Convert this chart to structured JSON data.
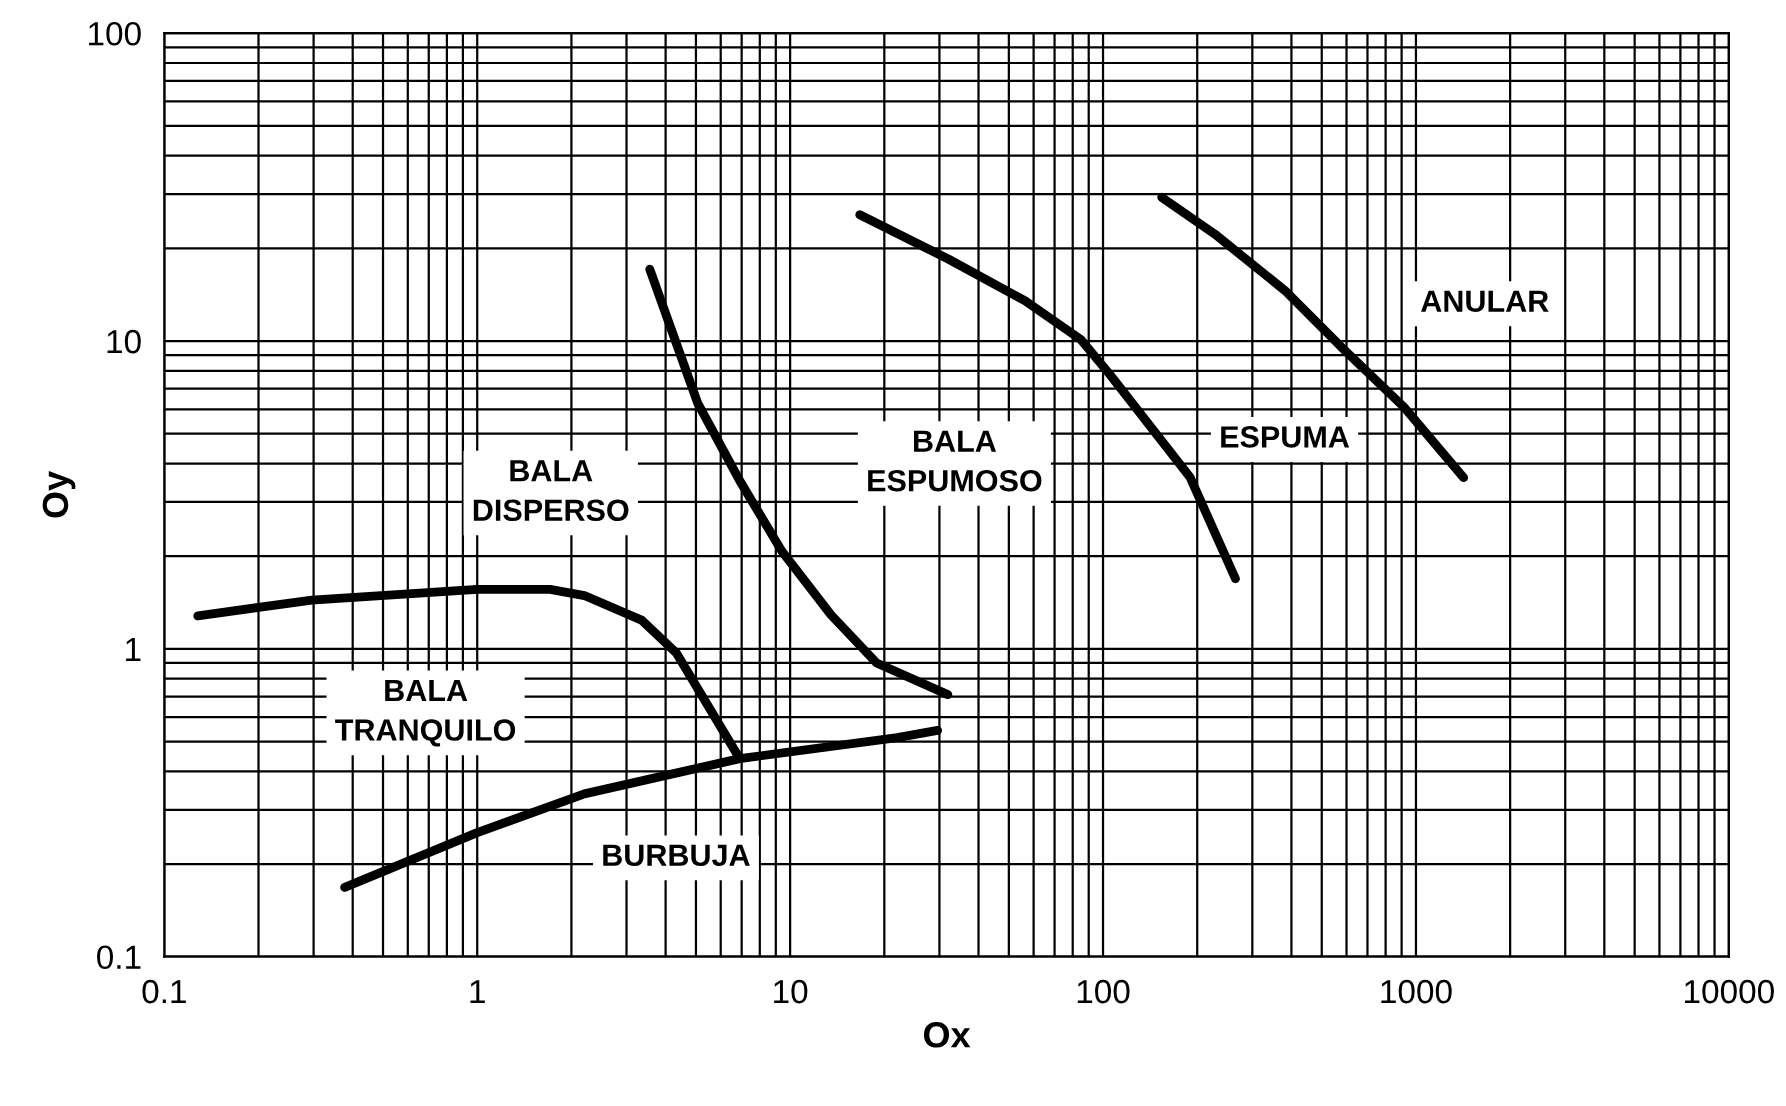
{
  "chart_data": {
    "type": "line",
    "xlabel": "Ox",
    "ylabel": "Oy",
    "log": "xy",
    "xlim": [
      0.1,
      10000
    ],
    "xticks": [
      0.1,
      1,
      10,
      100,
      1000,
      10000
    ],
    "ylim": [
      0.1,
      100
    ],
    "yticks": [
      0.1,
      1,
      10,
      100
    ],
    "grid": true,
    "marker": "none",
    "line_style": "solid",
    "series": [
      {
        "color": "#000000",
        "x": [
          0.128,
          0.296,
          1,
          1.71,
          2.2,
          3.35,
          4.33,
          6.9
        ],
        "values": [
          1.28,
          1.44,
          1.56,
          1.56,
          1.49,
          1.24,
          0.97,
          0.44
        ]
      },
      {
        "color": "#000000",
        "x": [
          0.377,
          1,
          2.2,
          6.9,
          22,
          29.6
        ],
        "values": [
          0.168,
          0.253,
          0.338,
          0.44,
          0.515,
          0.543
        ]
      },
      {
        "color": "#000000",
        "x": [
          3.56,
          5.06,
          6.9,
          9.4,
          13.5,
          18.9,
          31.9
        ],
        "values": [
          17.1,
          6.3,
          3.52,
          2.08,
          1.29,
          0.9,
          0.71
        ]
      },
      {
        "color": "#000000",
        "x": [
          16.7,
          31.9,
          56.4,
          85,
          105,
          190,
          265
        ],
        "values": [
          25.7,
          18.5,
          13.5,
          10.1,
          7.8,
          3.6,
          1.69
        ]
      },
      {
        "color": "#000000",
        "x": [
          154,
          227,
          381,
          575,
          916,
          1420
        ],
        "values": [
          29.3,
          22.3,
          14.6,
          9.6,
          6.1,
          3.6
        ]
      }
    ],
    "annotations": [
      "BALA\nDISPERSO",
      "BALA\nTRANQUILO",
      "BURBUJA",
      "BALA\nESPUMOSO",
      "ESPUMA",
      "ANULAR"
    ]
  }
}
